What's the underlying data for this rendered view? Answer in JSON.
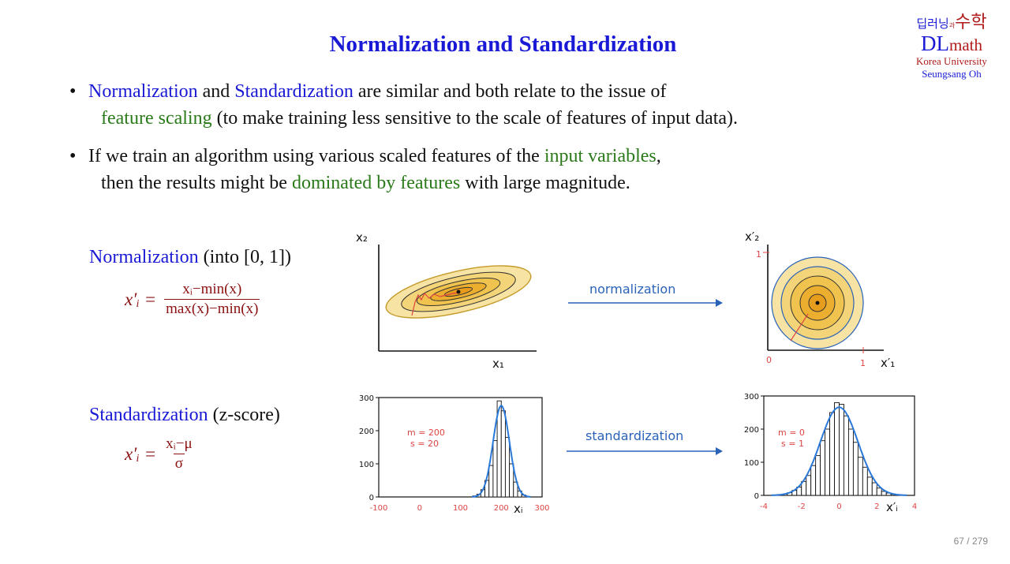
{
  "slide": {
    "title": "Normalization and Standardization",
    "page_current": "67",
    "page_total": "279",
    "page_sep": "/"
  },
  "logo": {
    "korean_left": "딥러닝",
    "korean_gwa": "과",
    "korean_right": "수학",
    "dl": "DL",
    "math": "math",
    "university": "Korea University",
    "author": "Seungsang Oh"
  },
  "bullets": [
    {
      "a": "Normalization",
      "b": " and ",
      "c": "Standardization",
      "d": " are similar and both relate to the issue of",
      "e": "feature scaling",
      "f": "  (to make training less sensitive to the scale of features of input data)."
    },
    {
      "a": "If we train an algorithm using various scaled features of the ",
      "b": "input variables",
      "c": ",",
      "d": "then the results might be ",
      "e": "dominated by features",
      "f": " with large magnitude."
    }
  ],
  "normalization": {
    "heading_blue": "Normalization",
    "heading_rest": " (into [0, 1])",
    "lhs": "x′ᵢ =",
    "numerator": "xᵢ−min(x)",
    "denominator": "max(x)−min(x)"
  },
  "standardization": {
    "heading_blue": "Standardization",
    "heading_rest": " (z-score)",
    "lhs": "x′ᵢ =",
    "numerator": "xᵢ−μ",
    "denominator": "σ"
  },
  "diagram": {
    "arrow_norm_label": "normalization",
    "arrow_std_label": "standardization",
    "left_contour": {
      "y_axis": "x₂",
      "x_axis": "x₁"
    },
    "right_contour": {
      "y_axis": "x′₂",
      "x_axis": "x′₁",
      "tick_y": "1",
      "tick_x": "1",
      "origin": "0"
    }
  },
  "chart_data": [
    {
      "type": "bar",
      "title": "",
      "xlabel": "xᵢ",
      "ylabel": "",
      "annotation": [
        "m = 200",
        "s = 20"
      ],
      "xlim": [
        -100,
        300
      ],
      "ylim": [
        0,
        300
      ],
      "x_ticks": [
        "-100",
        "0",
        "100",
        "200",
        "300"
      ],
      "y_ticks": [
        "0",
        "100",
        "200",
        "300"
      ],
      "bin_width": 10,
      "bin_centers": [
        135,
        145,
        155,
        165,
        175,
        185,
        195,
        205,
        215,
        225,
        235,
        245,
        255
      ],
      "values": [
        3,
        8,
        22,
        50,
        95,
        170,
        290,
        260,
        180,
        100,
        45,
        18,
        6
      ],
      "curve": "normal pdf, mean 200, sd 20"
    },
    {
      "type": "bar",
      "title": "",
      "xlabel": "x′ᵢ",
      "ylabel": "",
      "annotation": [
        "m = 0",
        "s = 1"
      ],
      "xlim": [
        -4,
        4
      ],
      "ylim": [
        0,
        300
      ],
      "x_ticks": [
        "-4",
        "-2",
        "0",
        "2",
        "4"
      ],
      "y_ticks": [
        "0",
        "100",
        "200",
        "300"
      ],
      "bin_width": 0.25,
      "bin_centers": [
        -2.875,
        -2.625,
        -2.375,
        -2.125,
        -1.875,
        -1.625,
        -1.375,
        -1.125,
        -0.875,
        -0.625,
        -0.375,
        -0.125,
        0.125,
        0.375,
        0.625,
        0.875,
        1.125,
        1.375,
        1.625,
        1.875,
        2.125,
        2.375,
        2.625,
        2.875
      ],
      "values": [
        4,
        8,
        15,
        25,
        42,
        60,
        90,
        120,
        165,
        200,
        250,
        280,
        275,
        240,
        200,
        160,
        115,
        85,
        55,
        38,
        22,
        12,
        7,
        3
      ],
      "curve": "normal pdf, mean 0, sd 1"
    }
  ]
}
